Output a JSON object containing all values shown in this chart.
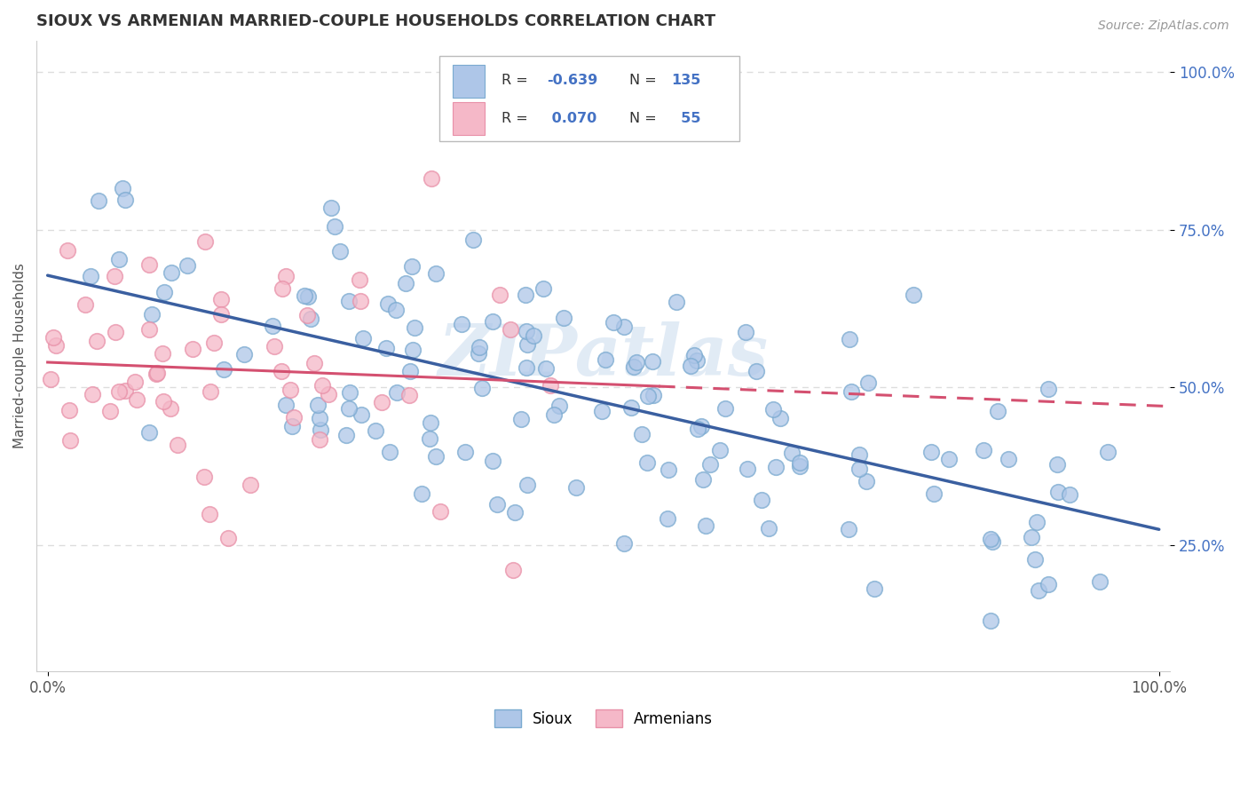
{
  "title": "SIOUX VS ARMENIAN MARRIED-COUPLE HOUSEHOLDS CORRELATION CHART",
  "source_text": "Source: ZipAtlas.com",
  "ylabel": "Married-couple Households",
  "xlim": [
    0,
    1
  ],
  "ylim": [
    0.05,
    1.05
  ],
  "xtick_labels": [
    "0.0%",
    "100.0%"
  ],
  "ytick_labels": [
    "25.0%",
    "50.0%",
    "75.0%",
    "100.0%"
  ],
  "ytick_positions": [
    0.25,
    0.5,
    0.75,
    1.0
  ],
  "sioux_color": "#aec6e8",
  "armenian_color": "#f5b8c8",
  "sioux_edge_color": "#7aaad0",
  "armenian_edge_color": "#e890a8",
  "sioux_line_color": "#3a5fa0",
  "armenian_line_color": "#d45070",
  "background_color": "#ffffff",
  "grid_color": "#dddddd",
  "watermark": "ZIPatlas",
  "sioux_R": -0.639,
  "sioux_N": 135,
  "armenian_R": 0.07,
  "armenian_N": 55,
  "legend_blue_text_color": "#4472c4",
  "title_color": "#333333",
  "ylabel_color": "#555555",
  "tick_color": "#555555",
  "ytick_color": "#4472c4"
}
